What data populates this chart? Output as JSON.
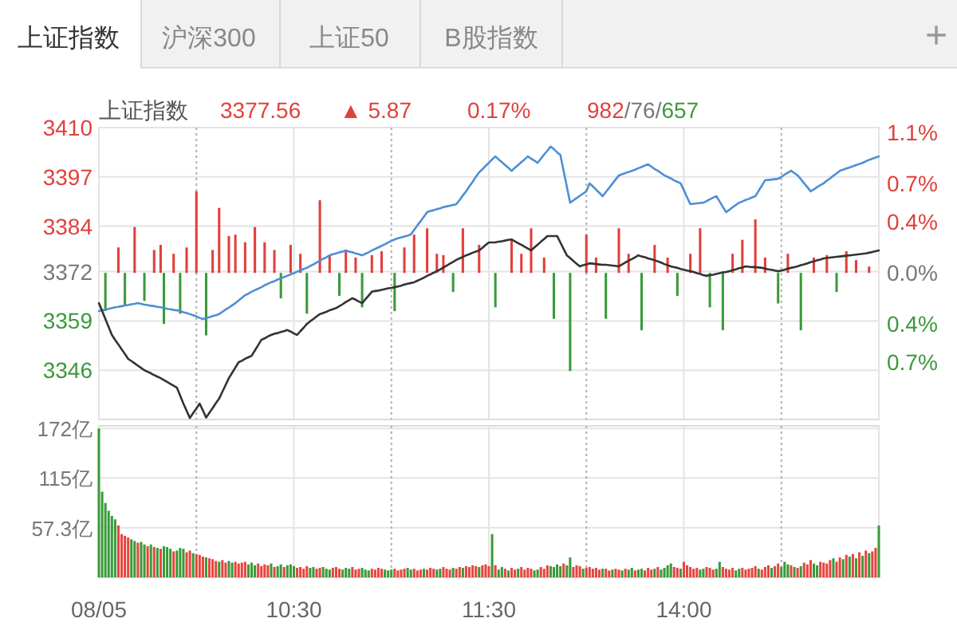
{
  "chart_data": [
    {
      "type": "line",
      "annotations": [
        "上证指数",
        "沪深300",
        "上证50",
        "B股指数",
        "+",
        "上证指数",
        "3377.56",
        "▲ 5.87",
        "0.17%",
        "982/76/657"
      ],
      "categories": [
        null,
        null,
        null,
        null,
        null,
        null,
        null,
        null,
        null,
        null,
        null,
        null,
        null,
        null,
        null,
        null,
        null,
        null,
        null,
        null,
        null,
        null,
        null,
        null,
        null,
        null,
        null,
        null,
        null,
        null,
        null,
        null,
        null,
        null,
        null,
        null,
        null,
        null,
        null,
        null,
        null,
        null,
        null,
        null,
        null,
        null,
        null,
        null,
        null,
        null,
        null,
        null,
        null,
        null,
        null,
        null,
        null,
        null,
        null,
        null,
        null,
        null,
        null,
        null,
        null,
        null,
        null,
        null,
        null,
        null,
        null,
        null,
        null,
        null,
        null,
        null,
        null,
        null,
        null,
        null,
        null,
        null,
        null,
        null,
        null,
        null,
        null,
        null,
        null,
        null,
        null,
        null,
        null,
        null,
        null,
        null,
        null,
        null,
        null,
        null,
        null,
        null,
        null,
        null,
        null,
        null,
        null,
        null,
        null,
        null,
        null,
        null,
        null,
        null,
        null,
        null,
        null,
        null,
        null,
        null,
        null,
        null,
        null,
        null,
        null,
        null,
        null,
        null,
        null,
        null,
        null,
        null,
        null,
        null,
        null,
        null,
        null,
        null,
        null,
        null,
        null,
        null,
        null,
        null,
        null,
        null,
        null,
        null,
        null,
        null,
        null,
        null,
        null,
        null,
        null,
        null,
        null,
        null,
        null,
        null,
        null,
        null,
        null,
        null,
        null,
        null,
        null,
        null,
        null,
        null,
        null,
        null,
        null,
        null,
        null,
        null,
        null,
        null,
        null,
        null,
        null,
        null,
        null,
        null,
        null,
        null,
        null,
        null,
        null,
        null,
        null,
        null,
        null,
        null,
        null,
        null,
        null,
        null,
        null,
        null,
        null,
        null,
        null,
        null,
        null,
        null,
        null,
        null,
        null,
        null,
        null,
        null,
        null,
        null,
        null,
        null,
        null,
        null,
        null,
        null,
        null,
        null,
        null,
        null,
        null,
        null,
        null,
        null,
        null,
        null,
        null,
        null,
        null,
        null,
        null,
        null,
        null,
        null,
        null,
        null,
        null
      ],
      "ylim": [
        3333,
        3410
      ],
      "yticks": [
        3410,
        3397,
        3384,
        3372,
        3359,
        3346
      ],
      "y2lim": [
        -1.15,
        1.14
      ],
      "y2ticks": [
        {
          "value": 1.1,
          "label": "1.1%"
        },
        {
          "value": 0.7,
          "label": "0.7%"
        },
        {
          "value": 0.4,
          "label": "0.4%"
        },
        {
          "value": 0,
          "label": "0.0%"
        },
        {
          "value": -0.4,
          "label": "0.4%"
        },
        {
          "value": -0.7,
          "label": "0.7%"
        }
      ],
      "grid": true,
      "tick_labels": "y",
      "series": [
        {
          "type": "bar",
          "axis": "y2",
          "color": "#e0403c",
          "values": [
            null,
            null,
            null,
            null,
            null,
            null,
            0.2,
            null,
            null,
            null,
            null,
            0.36,
            null,
            null,
            null,
            null,
            null,
            0.18,
            null,
            0.22,
            null,
            null,
            null,
            0.15,
            null,
            null,
            null,
            0.2,
            null,
            null,
            0.64,
            null,
            null,
            null,
            null,
            0.18,
            null,
            0.51,
            null,
            null,
            0.29,
            null,
            0.3,
            null,
            null,
            0.24,
            null,
            null,
            0.36,
            null,
            null,
            0.24,
            null,
            null,
            0.18,
            null,
            null,
            null,
            null,
            0.22,
            null,
            null,
            0.15,
            null,
            null,
            null,
            null,
            null,
            0.57,
            null,
            null,
            0.14,
            null,
            null,
            null,
            null,
            0.17,
            null,
            null,
            0.12,
            null,
            null,
            null,
            null,
            0.14,
            null,
            null,
            0.17,
            null,
            null,
            null,
            null,
            null,
            null,
            0.2,
            null,
            null,
            0.3,
            null,
            null,
            null,
            0.35,
            null,
            null,
            0.15,
            null,
            0.14,
            null,
            null,
            null,
            null,
            null,
            0.35,
            null,
            null,
            null,
            null,
            0.22,
            null,
            null,
            null,
            null,
            null,
            null,
            null,
            null,
            null,
            0.26,
            null,
            null,
            0.15,
            null,
            null,
            0.35,
            null,
            null,
            null,
            0.12,
            null,
            null,
            null,
            null,
            null,
            null,
            null,
            null,
            null,
            null,
            null,
            null,
            0.3,
            null,
            null,
            0.12,
            null,
            null,
            null,
            null,
            null,
            null,
            0.35,
            null,
            null,
            0.15,
            null,
            null,
            null,
            null,
            null,
            null,
            null,
            0.22,
            null,
            null,
            null,
            0.12,
            null,
            null,
            null,
            null,
            null,
            null,
            0.15,
            null,
            null,
            0.35,
            null,
            null,
            null,
            null,
            null,
            null,
            null,
            null,
            null,
            0.15,
            null,
            null,
            0.26,
            null,
            null,
            null,
            0.42,
            null,
            null,
            0.12,
            null,
            null,
            null,
            null,
            null,
            null,
            0.15,
            null,
            null,
            null,
            null,
            null,
            null,
            null,
            0.12,
            null,
            null,
            null,
            0.14,
            null,
            null,
            null,
            null,
            null,
            0.17,
            null,
            null,
            0.1,
            null,
            null,
            null,
            0.05,
            null,
            null,
            null
          ]
        },
        {
          "type": "bar",
          "axis": "y2",
          "color": "#3a9a3a",
          "values": [
            null,
            null,
            -0.3,
            null,
            null,
            null,
            null,
            null,
            -0.25,
            null,
            null,
            null,
            null,
            null,
            -0.22,
            null,
            null,
            null,
            null,
            null,
            -0.4,
            null,
            null,
            null,
            null,
            -0.32,
            null,
            null,
            null,
            null,
            null,
            null,
            null,
            -0.49,
            null,
            null,
            null,
            null,
            null,
            null,
            null,
            null,
            null,
            null,
            null,
            null,
            null,
            null,
            null,
            null,
            null,
            null,
            null,
            null,
            null,
            null,
            -0.2,
            null,
            null,
            null,
            null,
            null,
            null,
            null,
            -0.32,
            null,
            null,
            null,
            null,
            null,
            null,
            null,
            null,
            null,
            -0.18,
            null,
            null,
            null,
            null,
            null,
            null,
            -0.27,
            null,
            null,
            null,
            null,
            null,
            null,
            null,
            null,
            null,
            -0.3,
            null,
            null,
            null,
            null,
            null,
            null,
            null,
            null,
            null,
            null,
            null,
            null,
            null,
            null,
            null,
            null,
            null,
            -0.15,
            null,
            null,
            null,
            null,
            null,
            null,
            null,
            null,
            null,
            null,
            null,
            null,
            -0.27,
            null,
            null,
            null,
            null,
            null,
            null,
            null,
            null,
            null,
            null,
            null,
            null,
            null,
            null,
            null,
            null,
            null,
            -0.36,
            null,
            null,
            null,
            null,
            -0.77,
            null,
            null,
            null,
            null,
            null,
            null,
            null,
            null,
            null,
            null,
            -0.36,
            null,
            null,
            null,
            null,
            null,
            null,
            null,
            null,
            null,
            null,
            -0.45,
            null,
            null,
            null,
            null,
            null,
            null,
            null,
            null,
            null,
            null,
            -0.18,
            null,
            null,
            null,
            null,
            null,
            null,
            null,
            null,
            null,
            -0.27,
            null,
            null,
            null,
            -0.45,
            null,
            null,
            null,
            null,
            null,
            null,
            null,
            null,
            null,
            null,
            null,
            null,
            null,
            null,
            null,
            null,
            -0.24,
            null,
            null,
            null,
            null,
            null,
            null,
            -0.45,
            null,
            null,
            null,
            null,
            null,
            null,
            null,
            null,
            null,
            null,
            -0.15,
            null,
            null,
            null,
            null,
            null,
            null,
            null,
            null,
            null,
            null,
            null,
            null,
            null
          ]
        },
        {
          "color": "#4d8fd6",
          "values": [
            3361.6,
            3361.8,
            3362.0,
            3362.2,
            3362.4,
            3362.6,
            3362.7,
            3362.9,
            3363.1,
            3363.2,
            3363.4,
            3363.5,
            3363.7,
            3363.5,
            3363.3,
            3363.2,
            3363.0,
            3362.9,
            3362.7,
            3362.6,
            3362.4,
            3362.2,
            3362.1,
            3361.9,
            3361.8,
            3361.6,
            3361.3,
            3361.1,
            3360.8,
            3360.5,
            3360.2,
            3359.8,
            3359.5,
            3359.8,
            3360.0,
            3360.3,
            3360.5,
            3360.8,
            3361.4,
            3362.0,
            3362.5,
            3363.1,
            3363.7,
            3364.4,
            3365.1,
            3365.8,
            3366.2,
            3366.7,
            3367.1,
            3367.5,
            3367.9,
            3368.4,
            3368.8,
            3369.2,
            3369.5,
            3369.9,
            3370.2,
            3370.6,
            3370.9,
            3371.3,
            3371.6,
            3372.0,
            3372.3,
            3372.7,
            3373.0,
            3373.5,
            3373.9,
            3374.4,
            3374.9,
            3375.4,
            3375.8,
            3376.3,
            3376.6,
            3376.8,
            3377.1,
            3377.3,
            3377.6,
            3377.3,
            3377.1,
            3376.8,
            3376.6,
            3376.3,
            3376.7,
            3377.1,
            3377.6,
            3378.0,
            3378.4,
            3378.8,
            3379.2,
            3379.7,
            3380.1,
            3380.5,
            3380.8,
            3381.0,
            3381.3,
            3381.5,
            3381.8,
            3383.0,
            3384.2,
            3385.3,
            3386.5,
            3387.7,
            3388.0,
            3388.2,
            3388.5,
            3388.7,
            3389.0,
            3389.2,
            3389.4,
            3389.6,
            3389.8,
            3390.9,
            3392.1,
            3393.2,
            3394.5,
            3395.7,
            3397.0,
            3398.2,
            3399.0,
            3399.9,
            3400.7,
            3401.6,
            3402.4,
            3401.6,
            3400.9,
            3400.1,
            3399.4,
            3398.6,
            3399.4,
            3400.1,
            3400.9,
            3401.6,
            3402.4,
            3401.8,
            3401.3,
            3400.7,
            3401.8,
            3402.9,
            3403.9,
            3405.0,
            3404.3,
            3403.5,
            3402.8,
            3398.6,
            3394.4,
            3390.2,
            3390.8,
            3391.4,
            3392.0,
            3392.6,
            3393.2,
            3395.3,
            3394.5,
            3393.6,
            3392.8,
            3391.9,
            3393.0,
            3394.1,
            3395.2,
            3396.3,
            3397.4,
            3397.7,
            3398.0,
            3398.3,
            3398.6,
            3398.9,
            3399.3,
            3399.6,
            3400.0,
            3400.3,
            3399.7,
            3399.1,
            3398.6,
            3398.0,
            3397.4,
            3397.0,
            3396.6,
            3396.1,
            3395.7,
            3395.3,
            3393.5,
            3391.6,
            3389.8,
            3389.9,
            3390.0,
            3390.1,
            3390.2,
            3390.6,
            3391.1,
            3391.5,
            3391.9,
            3390.5,
            3389.1,
            3387.7,
            3388.3,
            3389.0,
            3389.6,
            3390.2,
            3390.5,
            3390.9,
            3391.2,
            3391.6,
            3391.9,
            3393.3,
            3394.7,
            3396.1,
            3396.2,
            3396.3,
            3396.4,
            3396.5,
            3397.0,
            3397.6,
            3398.1,
            3398.6,
            3398.0,
            3397.4,
            3396.4,
            3395.3,
            3394.3,
            3393.2,
            3393.7,
            3394.3,
            3394.8,
            3395.3,
            3396.0,
            3396.6,
            3397.3,
            3397.9,
            3398.6,
            3398.9,
            3399.2,
            3399.5,
            3399.8,
            3400.1,
            3400.4,
            3400.7,
            3401.1,
            3401.5,
            3401.8,
            3402.1,
            3402.4
          ]
        },
        {
          "color": "#333333",
          "values": [
            3363.7,
            3361.6,
            3359.5,
            3357.4,
            3355.3,
            3354.0,
            3352.8,
            3351.5,
            3350.3,
            3349.0,
            3348.4,
            3347.8,
            3347.2,
            3346.6,
            3346.0,
            3345.6,
            3345.2,
            3344.7,
            3344.3,
            3343.9,
            3343.4,
            3342.9,
            3342.4,
            3341.9,
            3341.4,
            3339.3,
            3337.2,
            3335.3,
            3333.4,
            3334.7,
            3335.9,
            3337.2,
            3335.4,
            3333.5,
            3334.8,
            3336.0,
            3337.3,
            3338.5,
            3340.3,
            3342.1,
            3343.9,
            3345.3,
            3346.7,
            3348.1,
            3348.5,
            3349.0,
            3349.4,
            3349.8,
            3351.2,
            3352.6,
            3354.0,
            3354.4,
            3354.9,
            3355.3,
            3355.6,
            3355.8,
            3356.1,
            3356.3,
            3356.6,
            3356.2,
            3355.7,
            3355.3,
            3356.3,
            3357.2,
            3358.2,
            3358.9,
            3359.5,
            3360.2,
            3360.8,
            3361.1,
            3361.4,
            3361.8,
            3362.1,
            3362.4,
            3362.9,
            3363.4,
            3364.0,
            3364.5,
            3365.0,
            3364.6,
            3364.1,
            3363.7,
            3364.7,
            3365.7,
            3366.7,
            3366.9,
            3367.0,
            3367.2,
            3367.4,
            3367.6,
            3367.7,
            3367.9,
            3368.1,
            3368.3,
            3368.6,
            3368.8,
            3369.0,
            3369.2,
            3369.6,
            3370.0,
            3370.4,
            3370.9,
            3371.3,
            3371.7,
            3372.1,
            3372.6,
            3373.1,
            3373.6,
            3374.1,
            3374.6,
            3375.1,
            3375.5,
            3375.9,
            3376.3,
            3376.6,
            3377.0,
            3377.3,
            3377.6,
            3378.3,
            3379.0,
            3379.7,
            3379.7,
            3379.7,
            3379.9,
            3380.0,
            3380.2,
            3380.4,
            3380.5,
            3380.0,
            3379.5,
            3379.1,
            3378.6,
            3378.1,
            3377.6,
            3378.4,
            3379.1,
            3379.9,
            3380.6,
            3381.4,
            3381.4,
            3381.4,
            3381.4,
            3379.7,
            3378.0,
            3376.3,
            3375.6,
            3374.8,
            3374.1,
            3373.4,
            3373.7,
            3373.9,
            3374.2,
            3374.1,
            3374.0,
            3373.9,
            3373.8,
            3373.8,
            3373.7,
            3373.6,
            3373.5,
            3373.4,
            3373.9,
            3374.4,
            3374.9,
            3375.3,
            3375.8,
            3376.3,
            3376.0,
            3375.8,
            3375.5,
            3375.3,
            3375.0,
            3374.7,
            3374.4,
            3374.0,
            3373.7,
            3373.4,
            3373.2,
            3373.0,
            3372.7,
            3372.5,
            3372.3,
            3372.1,
            3371.9,
            3371.6,
            3371.4,
            3371.1,
            3370.9,
            3371.1,
            3371.2,
            3371.4,
            3371.6,
            3371.8,
            3371.9,
            3372.1,
            3372.4,
            3372.6,
            3372.9,
            3373.1,
            3373.4,
            3373.3,
            3373.2,
            3373.2,
            3373.1,
            3373.0,
            3372.8,
            3372.6,
            3372.5,
            3372.3,
            3372.1,
            3372.3,
            3372.5,
            3372.8,
            3373.0,
            3373.2,
            3373.4,
            3373.7,
            3373.9,
            3374.2,
            3374.5,
            3374.7,
            3375.0,
            3375.2,
            3375.5,
            3375.6,
            3375.7,
            3375.8,
            3375.9,
            3376.0,
            3376.1,
            3376.2,
            3376.3,
            3376.4,
            3376.5,
            3376.6,
            3376.7,
            3376.8,
            3377.0,
            3377.2,
            3377.4,
            3377.6
          ]
        }
      ]
    },
    {
      "type": "bar",
      "categories": [
        "08/05",
        null,
        null,
        null,
        null,
        null,
        null,
        null,
        null,
        null,
        null,
        null,
        null,
        null,
        null,
        null,
        null,
        null,
        null,
        null,
        null,
        null,
        null,
        null,
        null,
        null,
        null,
        null,
        null,
        null,
        null,
        null,
        null,
        null,
        null,
        null,
        null,
        null,
        null,
        null,
        null,
        null,
        null,
        null,
        null,
        null,
        null,
        null,
        null,
        null,
        null,
        null,
        null,
        null,
        null,
        null,
        null,
        null,
        null,
        null,
        "10:30",
        null,
        null,
        null,
        null,
        null,
        null,
        null,
        null,
        null,
        null,
        null,
        null,
        null,
        null,
        null,
        null,
        null,
        null,
        null,
        null,
        null,
        null,
        null,
        null,
        null,
        null,
        null,
        null,
        null,
        null,
        null,
        null,
        null,
        null,
        null,
        null,
        null,
        null,
        null,
        null,
        null,
        null,
        null,
        null,
        null,
        null,
        null,
        null,
        null,
        null,
        null,
        null,
        null,
        null,
        null,
        null,
        null,
        null,
        null,
        "11:30",
        null,
        null,
        null,
        null,
        null,
        null,
        null,
        null,
        null,
        null,
        null,
        null,
        null,
        null,
        null,
        null,
        null,
        null,
        null,
        null,
        null,
        null,
        null,
        null,
        null,
        null,
        null,
        null,
        null,
        null,
        null,
        null,
        null,
        null,
        null,
        null,
        null,
        null,
        null,
        null,
        null,
        null,
        null,
        null,
        null,
        null,
        null,
        null,
        null,
        null,
        null,
        null,
        null,
        null,
        null,
        null,
        null,
        null,
        null,
        "14:00",
        null,
        null,
        null,
        null,
        null,
        null,
        null,
        null,
        null,
        null,
        null,
        null,
        null,
        null,
        null,
        null,
        null,
        null,
        null,
        null,
        null,
        null,
        null,
        null,
        null,
        null,
        null,
        null,
        null,
        null,
        null,
        null,
        null,
        null,
        null,
        null,
        null,
        null,
        null,
        null,
        null,
        null,
        null,
        null,
        null,
        null,
        null,
        null,
        null,
        null,
        null,
        null,
        null,
        null,
        null,
        null,
        null,
        null,
        null,
        null
      ],
      "values": [
        172,
        99,
        86,
        77,
        71,
        67,
        60,
        50,
        48,
        46,
        44,
        42,
        40,
        41,
        38,
        36,
        38,
        35,
        34,
        33,
        36,
        35,
        33,
        30,
        31,
        34,
        33,
        29,
        31,
        28,
        27,
        26,
        24,
        23,
        22,
        21,
        19,
        18,
        20,
        17,
        19,
        17,
        18,
        16,
        17,
        18,
        15,
        17,
        14,
        16,
        13,
        15,
        14,
        16,
        12,
        13,
        15,
        12,
        14,
        15,
        13,
        11,
        12,
        10,
        13,
        11,
        12,
        10,
        11,
        12,
        10,
        9,
        11,
        12,
        10,
        9,
        11,
        10,
        12,
        9,
        10,
        11,
        9,
        8,
        10,
        9,
        11,
        10,
        9,
        8,
        9,
        10,
        8,
        9,
        10,
        11,
        9,
        10,
        8,
        9,
        10,
        9,
        11,
        10,
        9,
        10,
        12,
        10,
        9,
        11,
        10,
        12,
        11,
        13,
        12,
        14,
        13,
        12,
        14,
        15,
        13,
        50,
        14,
        9,
        12,
        10,
        8,
        11,
        9,
        10,
        12,
        9,
        11,
        10,
        8,
        9,
        12,
        10,
        14,
        13,
        12,
        15,
        13,
        16,
        14,
        23,
        12,
        14,
        13,
        10,
        11,
        12,
        10,
        11,
        9,
        10,
        10,
        8,
        9,
        10,
        9,
        8,
        10,
        9,
        11,
        8,
        9,
        10,
        8,
        11,
        9,
        10,
        12,
        9,
        11,
        14,
        16,
        12,
        11,
        10,
        18,
        14,
        12,
        10,
        11,
        9,
        10,
        12,
        11,
        9,
        10,
        18,
        12,
        10,
        9,
        11,
        8,
        10,
        11,
        9,
        10,
        11,
        13,
        10,
        9,
        12,
        14,
        11,
        13,
        16,
        12,
        18,
        15,
        14,
        12,
        11,
        13,
        17,
        15,
        20,
        16,
        14,
        18,
        17,
        16,
        20,
        22,
        18,
        23,
        21,
        26,
        24,
        27,
        22,
        29,
        25,
        31,
        28,
        30,
        34,
        60
      ],
      "colors": [
        "#3a9a3a",
        "#3a9a3a",
        "#3a9a3a",
        "#3a9a3a",
        "#3a9a3a",
        "#3a9a3a",
        "#e8453f",
        "#e8453f",
        "#e8453f",
        "#e8453f",
        "#3a9a3a",
        "#3a9a3a",
        "#e8453f",
        "#3a9a3a",
        "#3a9a3a",
        "#e8453f",
        "#3a9a3a",
        "#e8453f",
        "#3a9a3a",
        "#e8453f",
        "#3a9a3a",
        "#3a9a3a",
        "#3a9a3a",
        "#e8453f",
        "#3a9a3a",
        "#3a9a3a",
        "#3a9a3a",
        "#e8453f",
        "#e8453f",
        "#3a9a3a",
        "#e8453f",
        "#e8453f",
        "#e8453f",
        "#3a9a3a",
        "#e8453f",
        "#e8453f",
        "#e8453f",
        "#3a9a3a",
        "#e8453f",
        "#e8453f",
        "#3a9a3a",
        "#3a9a3a",
        "#e8453f",
        "#e8453f",
        "#e8453f",
        "#e8453f",
        "#3a9a3a",
        "#3a9a3a",
        "#3a9a3a",
        "#e8453f",
        "#e8453f",
        "#e8453f",
        "#e8453f",
        "#3a9a3a",
        "#e8453f",
        "#3a9a3a",
        "#3a9a3a",
        "#e8453f",
        "#3a9a3a",
        "#3a9a3a",
        "#3a9a3a",
        "#e8453f",
        "#e8453f",
        "#e8453f",
        "#e8453f",
        "#3a9a3a",
        "#3a9a3a",
        "#e8453f",
        "#e8453f",
        "#3a9a3a",
        "#3a9a3a",
        "#3a9a3a",
        "#e8453f",
        "#e8453f",
        "#e8453f",
        "#3a9a3a",
        "#3a9a3a",
        "#3a9a3a",
        "#e8453f",
        "#e8453f",
        "#e8453f",
        "#3a9a3a",
        "#3a9a3a",
        "#3a9a3a",
        "#e8453f",
        "#e8453f",
        "#e8453f",
        "#e8453f",
        "#3a9a3a",
        "#3a9a3a",
        "#3a9a3a",
        "#e8453f",
        "#e8453f",
        "#e8453f",
        "#e8453f",
        "#3a9a3a",
        "#3a9a3a",
        "#e8453f",
        "#e8453f",
        "#e8453f",
        "#3a9a3a",
        "#e8453f",
        "#e8453f",
        "#e8453f",
        "#3a9a3a",
        "#3a9a3a",
        "#e8453f",
        "#e8453f",
        "#e8453f",
        "#3a9a3a",
        "#e8453f",
        "#e8453f",
        "#3a9a3a",
        "#e8453f",
        "#e8453f",
        "#e8453f",
        "#e8453f",
        "#3a9a3a",
        "#e8453f",
        "#e8453f",
        "#e8453f",
        "#3a9a3a",
        "#e8453f",
        "#3a9a3a",
        "#3a9a3a",
        "#e8453f",
        "#3a9a3a",
        "#e8453f",
        "#e8453f",
        "#3a9a3a",
        "#e8453f",
        "#e8453f",
        "#e8453f",
        "#e8453f",
        "#3a9a3a",
        "#3a9a3a",
        "#e8453f",
        "#e8453f",
        "#e8453f",
        "#3a9a3a",
        "#3a9a3a",
        "#3a9a3a",
        "#3a9a3a",
        "#e8453f",
        "#3a9a3a",
        "#3a9a3a",
        "#e8453f",
        "#e8453f",
        "#e8453f",
        "#3a9a3a",
        "#e8453f",
        "#e8453f",
        "#e8453f",
        "#e8453f",
        "#e8453f",
        "#3a9a3a",
        "#e8453f",
        "#e8453f",
        "#3a9a3a",
        "#e8453f",
        "#e8453f",
        "#3a9a3a",
        "#e8453f",
        "#3a9a3a",
        "#3a9a3a",
        "#e8453f",
        "#3a9a3a",
        "#3a9a3a",
        "#e8453f",
        "#e8453f",
        "#e8453f",
        "#3a9a3a",
        "#e8453f",
        "#3a9a3a",
        "#3a9a3a",
        "#3a9a3a",
        "#3a9a3a",
        "#e8453f",
        "#e8453f",
        "#3a9a3a",
        "#e8453f",
        "#e8453f",
        "#e8453f",
        "#e8453f",
        "#e8453f",
        "#3a9a3a",
        "#3a9a3a",
        "#e8453f",
        "#e8453f",
        "#e8453f",
        "#3a9a3a",
        "#3a9a3a",
        "#e8453f",
        "#e8453f",
        "#e8453f",
        "#e8453f",
        "#3a9a3a",
        "#3a9a3a",
        "#e8453f",
        "#e8453f",
        "#e8453f",
        "#e8453f",
        "#e8453f",
        "#3a9a3a",
        "#e8453f",
        "#e8453f",
        "#e8453f",
        "#3a9a3a",
        "#e8453f",
        "#e8453f",
        "#3a9a3a",
        "#3a9a3a",
        "#3a9a3a",
        "#e8453f",
        "#3a9a3a",
        "#e8453f",
        "#3a9a3a",
        "#e8453f",
        "#e8453f",
        "#e8453f",
        "#3a9a3a",
        "#3a9a3a",
        "#e8453f",
        "#e8453f",
        "#e8453f",
        "#e8453f",
        "#3a9a3a",
        "#e8453f",
        "#e8453f",
        "#3a9a3a",
        "#e8453f",
        "#3a9a3a",
        "#e8453f",
        "#3a9a3a",
        "#e8453f",
        "#3a9a3a",
        "#e8453f",
        "#3a9a3a",
        "#e8453f",
        "#e8453f",
        "#3a9a3a"
      ],
      "ylim": [
        0,
        175
      ],
      "yticks": [
        {
          "value": 172,
          "label": "172亿"
        },
        {
          "value": 115,
          "label": "115亿"
        },
        {
          "value": 57.3,
          "label": "57.3亿"
        }
      ],
      "grid": true
    }
  ]
}
